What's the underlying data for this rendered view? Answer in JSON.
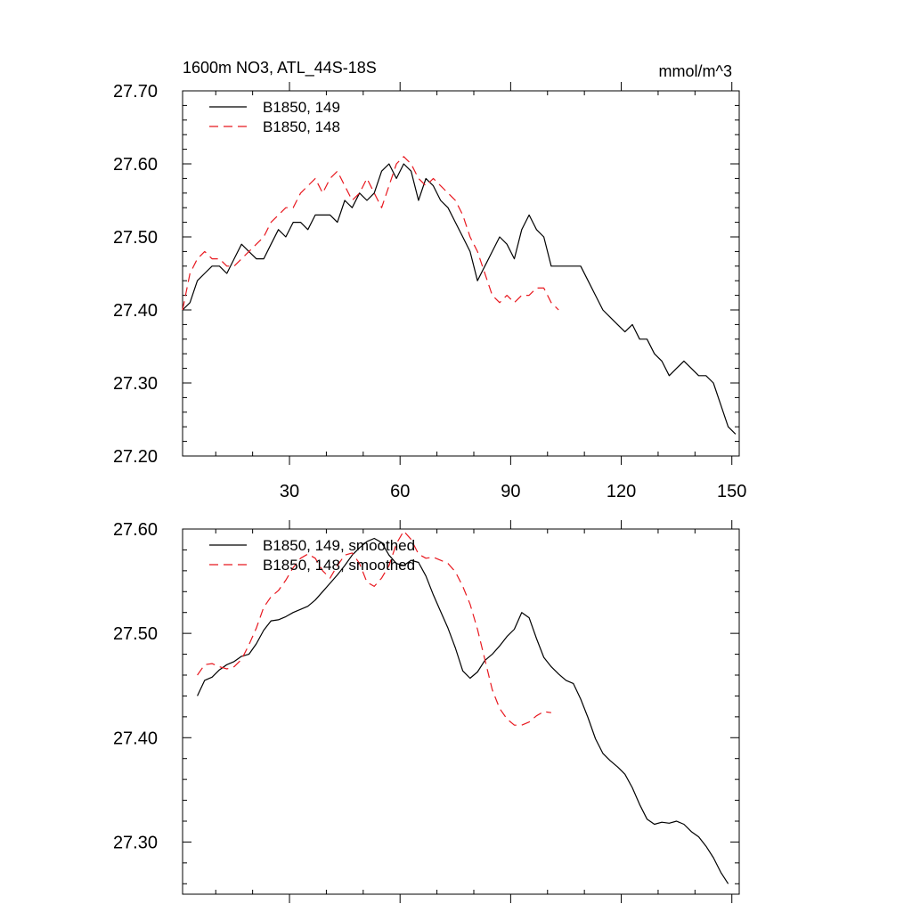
{
  "chart_data": [
    {
      "type": "line",
      "title": "1600m NO3, ATL_44S-18S",
      "units_label": "mmol/m^3",
      "xlabel": "",
      "ylabel": "",
      "xlim": [
        1,
        152
      ],
      "ylim": [
        27.2,
        27.7
      ],
      "xticks": [
        30,
        60,
        90,
        120,
        150
      ],
      "xtick_labels": [
        "30",
        "60",
        "90",
        "120",
        "150"
      ],
      "yticks": [
        27.2,
        27.3,
        27.4,
        27.5,
        27.6,
        27.7
      ],
      "ytick_labels": [
        "27.20",
        "27.30",
        "27.40",
        "27.50",
        "27.60",
        "27.70"
      ],
      "grid": false,
      "legend_position": "top-left",
      "series": [
        {
          "name": "B1850, 149",
          "color": "#000000",
          "dash": "solid",
          "x": [
            1,
            3,
            5,
            7,
            9,
            11,
            13,
            15,
            17,
            19,
            21,
            23,
            25,
            27,
            29,
            31,
            33,
            35,
            37,
            39,
            41,
            43,
            45,
            47,
            49,
            51,
            53,
            55,
            57,
            59,
            61,
            63,
            65,
            67,
            69,
            71,
            73,
            75,
            77,
            79,
            81,
            83,
            85,
            87,
            89,
            91,
            93,
            95,
            97,
            99,
            101,
            103,
            105,
            107,
            109,
            111,
            113,
            115,
            117,
            119,
            121,
            123,
            125,
            127,
            129,
            131,
            133,
            135,
            137,
            139,
            141,
            143,
            145,
            147,
            149,
            151
          ],
          "y": [
            27.4,
            27.41,
            27.44,
            27.45,
            27.46,
            27.46,
            27.45,
            27.47,
            27.49,
            27.48,
            27.47,
            27.47,
            27.49,
            27.51,
            27.5,
            27.52,
            27.52,
            27.51,
            27.53,
            27.53,
            27.53,
            27.52,
            27.55,
            27.54,
            27.56,
            27.55,
            27.56,
            27.59,
            27.6,
            27.58,
            27.6,
            27.59,
            27.55,
            27.58,
            27.57,
            27.55,
            27.54,
            27.52,
            27.5,
            27.48,
            27.44,
            27.46,
            27.48,
            27.5,
            27.49,
            27.47,
            27.51,
            27.53,
            27.51,
            27.5,
            27.46,
            27.46,
            27.46,
            27.46,
            27.46,
            27.44,
            27.42,
            27.4,
            27.39,
            27.38,
            27.37,
            27.38,
            27.36,
            27.36,
            27.34,
            27.33,
            27.31,
            27.32,
            27.33,
            27.32,
            27.31,
            27.31,
            27.3,
            27.27,
            27.24,
            27.23
          ]
        },
        {
          "name": "B1850, 148",
          "color": "#e8181f",
          "dash": "dashed",
          "x": [
            1,
            3,
            5,
            7,
            9,
            11,
            13,
            15,
            17,
            19,
            21,
            23,
            25,
            27,
            29,
            31,
            33,
            35,
            37,
            39,
            41,
            43,
            45,
            47,
            49,
            51,
            53,
            55,
            57,
            59,
            61,
            63,
            65,
            67,
            69,
            71,
            73,
            75,
            77,
            79,
            81,
            83,
            85,
            87,
            89,
            91,
            93,
            95,
            97,
            99,
            101,
            103
          ],
          "y": [
            27.4,
            27.45,
            27.47,
            27.48,
            27.47,
            27.47,
            27.46,
            27.46,
            27.47,
            27.48,
            27.49,
            27.5,
            27.52,
            27.53,
            27.54,
            27.54,
            27.56,
            27.57,
            27.58,
            27.56,
            27.58,
            27.59,
            27.57,
            27.55,
            27.56,
            27.58,
            27.56,
            27.54,
            27.57,
            27.6,
            27.61,
            27.6,
            27.58,
            27.57,
            27.58,
            27.57,
            27.56,
            27.55,
            27.53,
            27.5,
            27.48,
            27.45,
            27.42,
            27.41,
            27.42,
            27.41,
            27.42,
            27.42,
            27.43,
            27.43,
            27.41,
            27.4
          ]
        }
      ]
    },
    {
      "type": "line",
      "title": "",
      "xlabel": "",
      "ylabel": "",
      "xlim": [
        1,
        152
      ],
      "ylim": [
        27.25,
        27.6
      ],
      "xticks": [
        30,
        60,
        90,
        120,
        150
      ],
      "yticks": [
        27.3,
        27.4,
        27.5,
        27.6
      ],
      "ytick_labels": [
        "27.30",
        "27.40",
        "27.50",
        "27.60"
      ],
      "grid": false,
      "legend_position": "top-left",
      "series": [
        {
          "name": "B1850, 149, smoothed",
          "color": "#000000",
          "dash": "solid",
          "x": [
            5,
            7,
            9,
            11,
            13,
            15,
            17,
            19,
            21,
            23,
            25,
            27,
            29,
            31,
            33,
            35,
            37,
            39,
            41,
            43,
            45,
            47,
            49,
            51,
            53,
            55,
            57,
            59,
            61,
            63,
            65,
            67,
            69,
            71,
            73,
            75,
            77,
            79,
            81,
            83,
            85,
            87,
            89,
            91,
            93,
            95,
            97,
            99,
            101,
            103,
            105,
            107,
            109,
            111,
            113,
            115,
            117,
            119,
            121,
            123,
            125,
            127,
            129,
            131,
            133,
            135,
            137,
            139,
            141,
            143,
            145,
            147,
            149
          ],
          "y": [
            27.44,
            27.455,
            27.458,
            27.465,
            27.47,
            27.473,
            27.478,
            27.48,
            27.49,
            27.503,
            27.512,
            27.513,
            27.516,
            27.52,
            27.523,
            27.526,
            27.532,
            27.54,
            27.548,
            27.556,
            27.565,
            27.575,
            27.582,
            27.588,
            27.591,
            27.587,
            27.575,
            27.567,
            27.565,
            27.57,
            27.568,
            27.555,
            27.537,
            27.521,
            27.505,
            27.486,
            27.464,
            27.457,
            27.463,
            27.474,
            27.48,
            27.488,
            27.497,
            27.504,
            27.52,
            27.515,
            27.495,
            27.477,
            27.468,
            27.461,
            27.455,
            27.452,
            27.437,
            27.419,
            27.399,
            27.385,
            27.378,
            27.372,
            27.365,
            27.352,
            27.336,
            27.322,
            27.317,
            27.319,
            27.318,
            27.32,
            27.317,
            27.31,
            27.305,
            27.296,
            27.285,
            27.271,
            27.26
          ]
        },
        {
          "name": "B1850, 148, smoothed",
          "color": "#e8181f",
          "dash": "dashed",
          "x": [
            5,
            7,
            9,
            11,
            13,
            15,
            17,
            19,
            21,
            23,
            25,
            27,
            29,
            31,
            33,
            35,
            37,
            39,
            41,
            43,
            45,
            47,
            49,
            51,
            53,
            55,
            57,
            59,
            61,
            63,
            65,
            67,
            69,
            71,
            73,
            75,
            77,
            79,
            81,
            83,
            85,
            87,
            89,
            91,
            93,
            95,
            97,
            99,
            101
          ],
          "y": [
            27.46,
            27.47,
            27.471,
            27.468,
            27.466,
            27.468,
            27.475,
            27.489,
            27.505,
            27.525,
            27.535,
            27.541,
            27.551,
            27.563,
            27.572,
            27.576,
            27.572,
            27.56,
            27.553,
            27.565,
            27.575,
            27.577,
            27.567,
            27.549,
            27.545,
            27.553,
            27.565,
            27.586,
            27.598,
            27.59,
            27.576,
            27.572,
            27.573,
            27.57,
            27.567,
            27.559,
            27.545,
            27.528,
            27.504,
            27.475,
            27.446,
            27.428,
            27.418,
            27.412,
            27.412,
            27.415,
            27.421,
            27.425,
            27.424
          ]
        }
      ]
    }
  ]
}
